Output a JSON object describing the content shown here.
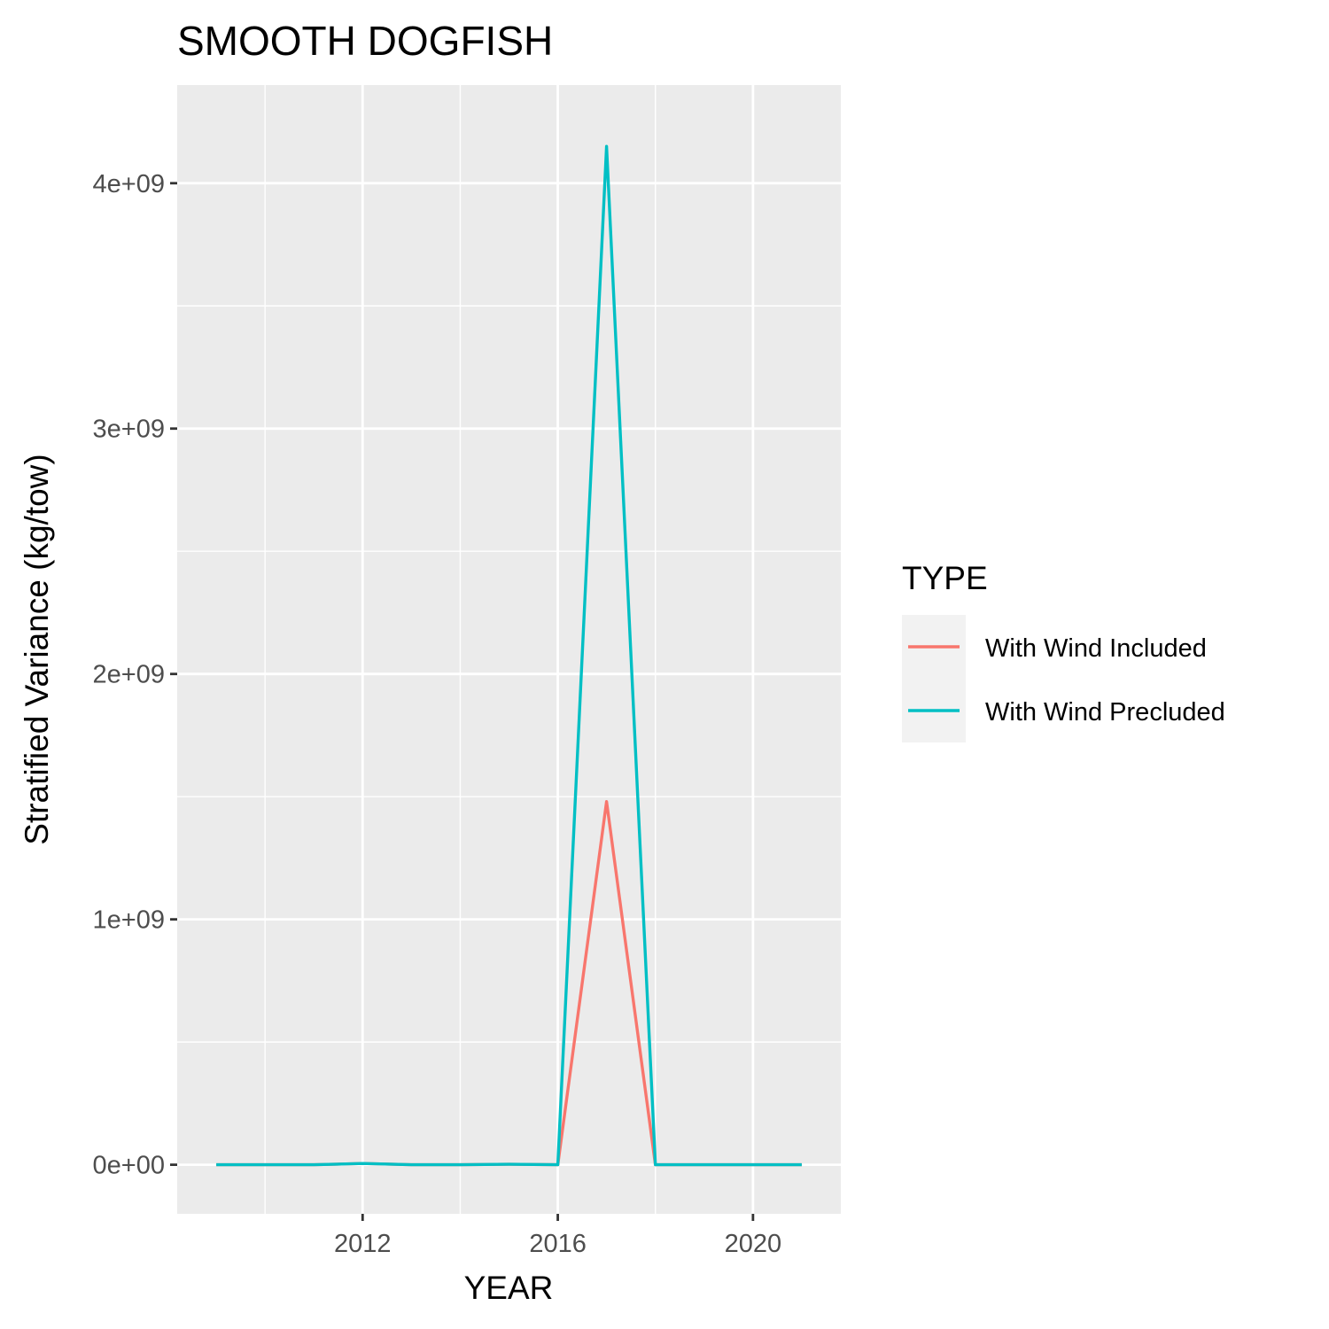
{
  "chart_data": {
    "type": "line",
    "title": "SMOOTH DOGFISH",
    "xlabel": "YEAR",
    "ylabel": "Stratified Variance (kg/tow)",
    "x": [
      2009,
      2010,
      2011,
      2012,
      2013,
      2014,
      2015,
      2016,
      2017,
      2018,
      2019,
      2020,
      2021
    ],
    "xlim": [
      2008.2,
      2021.8
    ],
    "ylim": [
      -200000000,
      4400000000
    ],
    "x_ticks": [
      2012,
      2016,
      2020
    ],
    "x_tick_labels": [
      "2012",
      "2016",
      "2020"
    ],
    "y_ticks": [
      0,
      1000000000,
      2000000000,
      3000000000,
      4000000000
    ],
    "y_tick_labels": [
      "0e+00",
      "1e+09",
      "2e+09",
      "3e+09",
      "4e+09"
    ],
    "grid": true,
    "legend": {
      "title": "TYPE",
      "placement": "right"
    },
    "series": [
      {
        "name": "With Wind Included",
        "color": "#F8766D",
        "values": [
          0,
          0,
          0,
          5000000,
          0,
          0,
          2000000,
          0,
          1480000000,
          0,
          0,
          0,
          0
        ]
      },
      {
        "name": "With Wind Precluded",
        "color": "#00BFC4",
        "values": [
          0,
          0,
          0,
          5000000,
          0,
          0,
          2000000,
          0,
          4150000000,
          0,
          0,
          0,
          0
        ]
      }
    ]
  }
}
